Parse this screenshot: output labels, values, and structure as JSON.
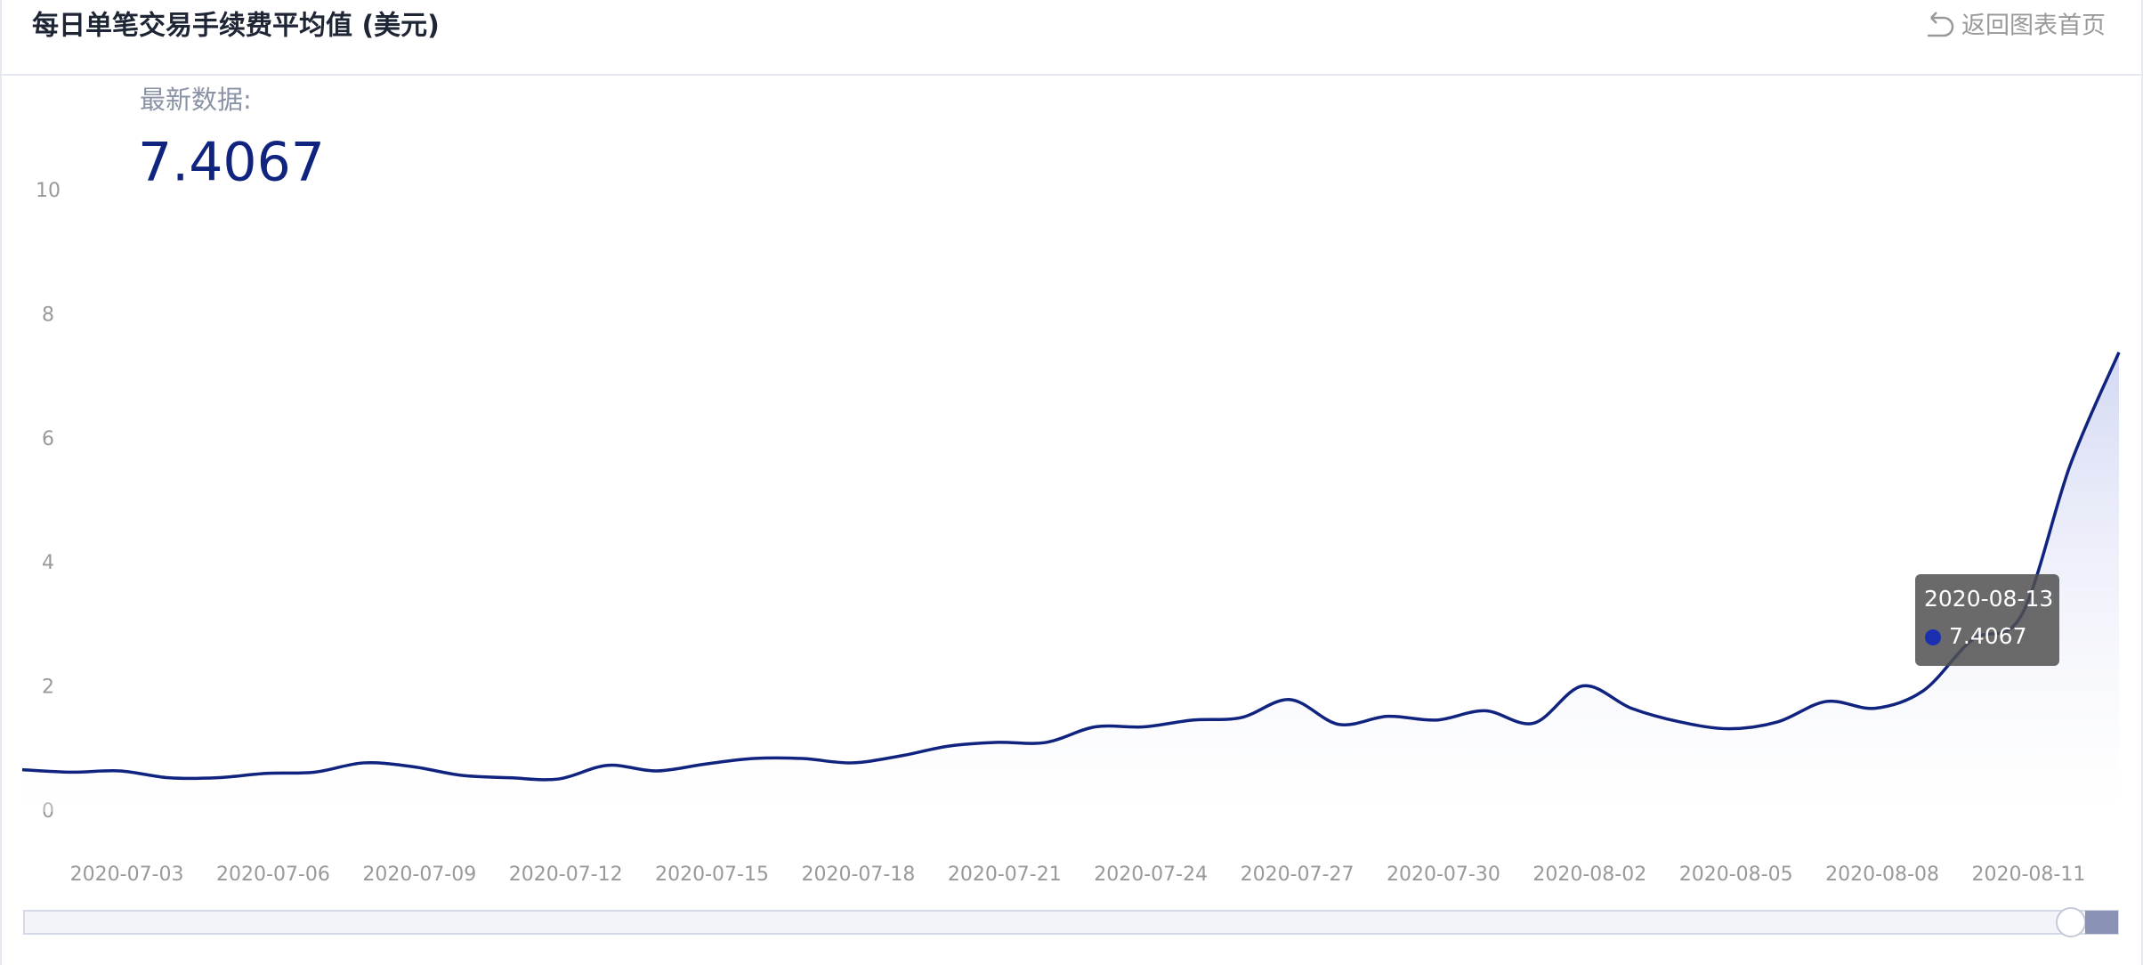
{
  "header": {
    "title": "每日单笔交易手续费平均值 (美元)",
    "back_link": "返回图表首页"
  },
  "latest": {
    "label": "最新数据:"
  },
  "chart_data": {
    "type": "line",
    "x": [
      "2020-07-01",
      "2020-07-02",
      "2020-07-03",
      "2020-07-04",
      "2020-07-05",
      "2020-07-06",
      "2020-07-07",
      "2020-07-08",
      "2020-07-09",
      "2020-07-10",
      "2020-07-11",
      "2020-07-12",
      "2020-07-13",
      "2020-07-14",
      "2020-07-15",
      "2020-07-16",
      "2020-07-17",
      "2020-07-18",
      "2020-07-19",
      "2020-07-20",
      "2020-07-21",
      "2020-07-22",
      "2020-07-23",
      "2020-07-24",
      "2020-07-25",
      "2020-07-26",
      "2020-07-27",
      "2020-07-28",
      "2020-07-29",
      "2020-07-30",
      "2020-07-31",
      "2020-08-01",
      "2020-08-02",
      "2020-08-03",
      "2020-08-04",
      "2020-08-05",
      "2020-08-06",
      "2020-08-07",
      "2020-08-08",
      "2020-08-09",
      "2020-08-10",
      "2020-08-11",
      "2020-08-12",
      "2020-08-13"
    ],
    "series": [
      {
        "color": "#10237f",
        "values": [
          0.68,
          0.64,
          0.66,
          0.55,
          0.55,
          0.62,
          0.64,
          0.79,
          0.73,
          0.59,
          0.55,
          0.53,
          0.75,
          0.66,
          0.77,
          0.86,
          0.86,
          0.79,
          0.9,
          1.06,
          1.12,
          1.12,
          1.37,
          1.37,
          1.48,
          1.52,
          1.81,
          1.41,
          1.54,
          1.48,
          1.63,
          1.43,
          2.03,
          1.67,
          1.45,
          1.34,
          1.45,
          1.78,
          1.67,
          1.96,
          2.78,
          3.17,
          5.59,
          7.4067
        ]
      }
    ],
    "ylim": [
      0,
      10
    ],
    "yticks": [
      0,
      2,
      4,
      6,
      8,
      10
    ],
    "grid": false
  }
}
